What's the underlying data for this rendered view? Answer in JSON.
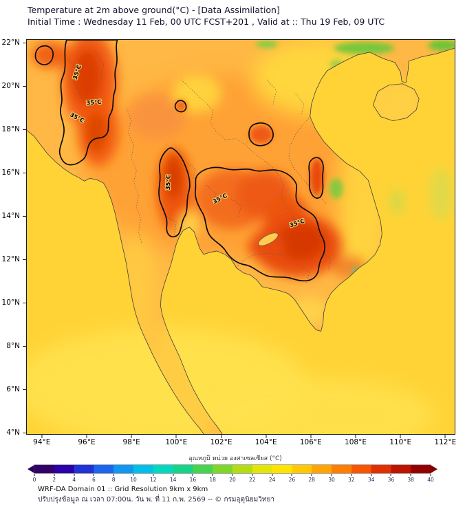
{
  "header": {
    "title": "Temperature at 2m above ground(°C) - [Data Assimilation]",
    "subtitle": "Initial Time : Wednesday 11 Feb, 00 UTC FCST+201 , Valid at :: Thu 19 Feb, 09 UTC"
  },
  "map": {
    "y_ticks": [
      "22°N",
      "20°N",
      "18°N",
      "16°N",
      "14°N",
      "12°N",
      "10°N",
      "8°N",
      "6°N",
      "4°N"
    ],
    "x_ticks": [
      "94°E",
      "96°E",
      "98°E",
      "100°E",
      "102°E",
      "104°E",
      "106°E",
      "108°E",
      "110°E",
      "112°E"
    ],
    "contour_label": "35°C"
  },
  "colorbar": {
    "label": "อุณหภูมิ หน่วย องศาเซลเซียส (°C)",
    "ticks": [
      0,
      2,
      4,
      6,
      8,
      10,
      12,
      14,
      16,
      18,
      20,
      22,
      24,
      26,
      28,
      30,
      32,
      34,
      36,
      38,
      40
    ],
    "cell_colors": [
      "#33006a",
      "#2a00a8",
      "#2233d6",
      "#1b66ee",
      "#0f97f2",
      "#00bfe8",
      "#00d9c0",
      "#15d488",
      "#46d44e",
      "#7ed62b",
      "#b4dc12",
      "#e4e406",
      "#ffe400",
      "#ffc800",
      "#ffa400",
      "#ff7e00",
      "#f85500",
      "#e03000",
      "#bd1400",
      "#940000"
    ],
    "arrow_left": "#2b0060",
    "arrow_right": "#7d0000"
  },
  "footer": {
    "line1": "WRF-DA Domain 01 :: Grid Resolution 9km x 9km",
    "line2": "ปรับปรุงข้อมูล ณ เวลา 07:00น. วัน พ. ที่ 11 ก.พ. 2569 -- © กรมอุตุนิยมวิทยา"
  },
  "chart_data": {
    "type": "heatmap",
    "title": "Temperature at 2m above ground(°C) - [Data Assimilation]",
    "subtitle": "Initial Time : Wednesday 11 Feb, 00 UTC FCST+201 , Valid at :: Thu 19 Feb, 09 UTC",
    "x_tick_labels": [
      "94°E",
      "96°E",
      "98°E",
      "100°E",
      "102°E",
      "104°E",
      "106°E",
      "108°E",
      "110°E",
      "112°E"
    ],
    "y_tick_labels": [
      "4°N",
      "6°N",
      "8°N",
      "10°N",
      "12°N",
      "14°N",
      "16°N",
      "18°N",
      "20°N",
      "22°N"
    ],
    "x_range_deg_east": [
      93.3,
      112.45
    ],
    "y_range_deg_north": [
      3.9,
      22.15
    ],
    "colorbar": {
      "label": "อุณหภูมิ หน่วย องศาเซลเซียส (°C)",
      "min": 0,
      "max": 40,
      "tick_step": 2,
      "orientation": "horizontal-bottom"
    },
    "contour_levels_c": [
      35
    ],
    "regions": [
      {
        "area": "Andaman Sea / Gulf of Thailand / South China Sea",
        "approx_temp_c": 30
      },
      {
        "area": "Eastern Myanmar (elongated hot strip, inside 35°C contour)",
        "approx_temp_c": 36
      },
      {
        "area": "Central / North-Central Thailand (inside 35°C contour)",
        "approx_temp_c": 36
      },
      {
        "area": "Northeast Thailand - Khorat plateau (inside 35°C contour)",
        "approx_temp_c": 36
      },
      {
        "area": "Cambodia lowlands (inside 35°C contour)",
        "approx_temp_c": 37
      },
      {
        "area": "Laos / Northern Vietnam",
        "approx_temp_c": 31
      },
      {
        "area": "Annamite mountains cool spot (~15°N 107°E)",
        "approx_temp_c": 27
      },
      {
        "area": "South China coast green streak (~21.8°N 108°E)",
        "approx_temp_c": 26
      },
      {
        "area": "Southern seas (below 8°N, paler yellow)",
        "approx_temp_c": 29
      }
    ],
    "grid": false,
    "model": "WRF-DA Domain 01, 9km x 9km"
  }
}
